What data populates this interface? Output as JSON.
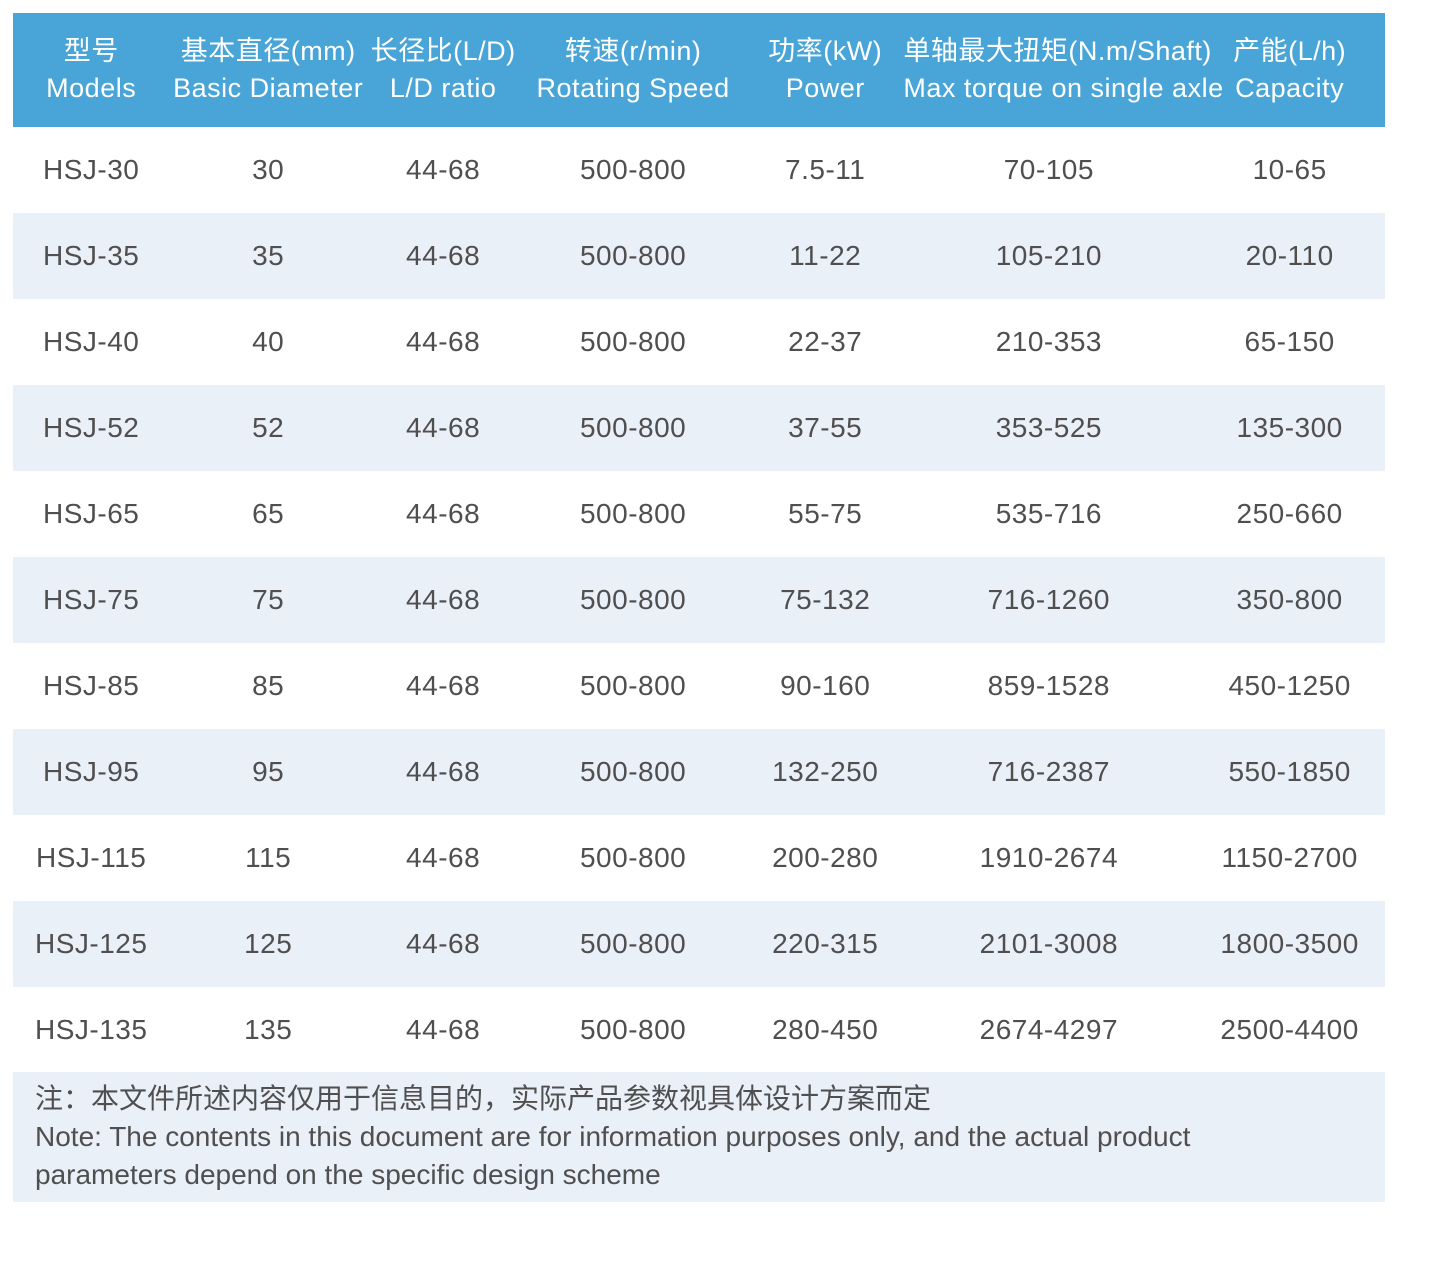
{
  "table": {
    "columns": [
      {
        "zh": "型号",
        "en": "Models"
      },
      {
        "zh": "基本直径(mm)",
        "en": "Basic Diameter"
      },
      {
        "zh": "长径比(L/D)",
        "en": "L/D ratio"
      },
      {
        "zh": "转速(r/min)",
        "en": "Rotating Speed"
      },
      {
        "zh": "功率(kW)",
        "en": "Power"
      },
      {
        "zh": "单轴最大扭矩(N.m/Shaft)",
        "en": "Max torque on single axle"
      },
      {
        "zh": "产能(L/h)",
        "en": "Capacity"
      }
    ],
    "rows": [
      [
        "HSJ-30",
        "30",
        "44-68",
        "500-800",
        "7.5-11",
        "70-105",
        "10-65"
      ],
      [
        "HSJ-35",
        "35",
        "44-68",
        "500-800",
        "11-22",
        "105-210",
        "20-110"
      ],
      [
        "HSJ-40",
        "40",
        "44-68",
        "500-800",
        "22-37",
        "210-353",
        "65-150"
      ],
      [
        "HSJ-52",
        "52",
        "44-68",
        "500-800",
        "37-55",
        "353-525",
        "135-300"
      ],
      [
        "HSJ-65",
        "65",
        "44-68",
        "500-800",
        "55-75",
        "535-716",
        "250-660"
      ],
      [
        "HSJ-75",
        "75",
        "44-68",
        "500-800",
        "75-132",
        "716-1260",
        "350-800"
      ],
      [
        "HSJ-85",
        "85",
        "44-68",
        "500-800",
        "90-160",
        "859-1528",
        "450-1250"
      ],
      [
        "HSJ-95",
        "95",
        "44-68",
        "500-800",
        "132-250",
        "716-2387",
        "550-1850"
      ],
      [
        "HSJ-115",
        "115",
        "44-68",
        "500-800",
        "200-280",
        "1910-2674",
        "1150-2700"
      ],
      [
        "HSJ-125",
        "125",
        "44-68",
        "500-800",
        "220-315",
        "2101-3008",
        "1800-3500"
      ],
      [
        "HSJ-135",
        "135",
        "44-68",
        "500-800",
        "280-450",
        "2674-4297",
        "2500-4400"
      ]
    ]
  },
  "note": {
    "lines": [
      "注：本文件所述内容仅用于信息目的，实际产品参数视具体设计方案而定",
      "Note: The contents in this document are for information purposes only, and the actual product",
      "parameters depend on the specific design scheme"
    ]
  },
  "colors": {
    "header_bg": "#49A5D7",
    "header_text": "#FFFFFF",
    "row_alt_bg": "#EAF0F8",
    "note_bg": "#EAF0F8",
    "body_text": "#4F4F4F"
  }
}
